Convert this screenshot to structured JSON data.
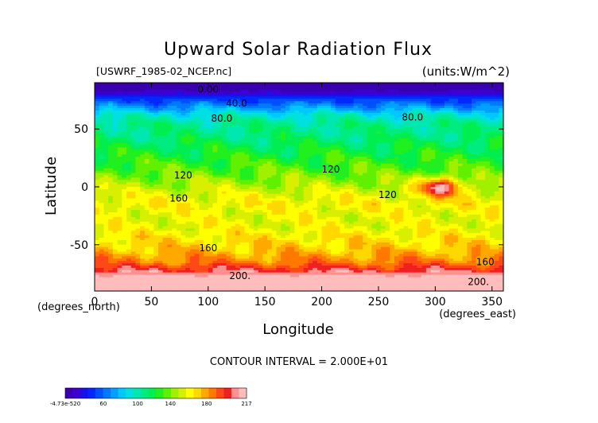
{
  "chart_data": {
    "type": "heatmap",
    "title": "Upward Solar Radiation Flux",
    "file_label": "[USWRF_1985-02_NCEP.nc]",
    "units_label": "(units:W/m^2)",
    "xlabel": "Longitude",
    "ylabel": "Latitude",
    "x_unit_label": "(degrees_east)",
    "y_unit_label": "(degrees_north)",
    "xlim": [
      0,
      360
    ],
    "ylim": [
      -90,
      90
    ],
    "x_ticks": [
      0,
      50,
      100,
      150,
      200,
      250,
      300,
      350
    ],
    "y_ticks": [
      -50,
      0,
      50
    ],
    "contour_interval_text": "CONTOUR INTERVAL = 2.000E+01",
    "contour_labels": [
      {
        "text": "0.00",
        "lon": 100,
        "lat": 84
      },
      {
        "text": "40.0",
        "lon": 125,
        "lat": 72
      },
      {
        "text": "80.0",
        "lon": 112,
        "lat": 59
      },
      {
        "text": "80.0",
        "lon": 280,
        "lat": 60
      },
      {
        "text": "120",
        "lon": 208,
        "lat": 15
      },
      {
        "text": "120",
        "lon": 78,
        "lat": 10
      },
      {
        "text": "120",
        "lon": 258,
        "lat": -7
      },
      {
        "text": "160",
        "lon": 74,
        "lat": -10
      },
      {
        "text": "160",
        "lon": 100,
        "lat": -53
      },
      {
        "text": "160",
        "lon": 344,
        "lat": -65
      },
      {
        "text": "200.",
        "lon": 128,
        "lat": -77
      },
      {
        "text": "200.",
        "lon": 338,
        "lat": -82
      }
    ],
    "colorbar": {
      "tick_labels": [
        "-4.73e-520",
        "60",
        "100",
        "140",
        "180",
        "217"
      ],
      "colors": [
        "#3a00b0",
        "#3c00d2",
        "#1a10e8",
        "#0028ff",
        "#0050ff",
        "#0078ff",
        "#00a0ff",
        "#00c8ff",
        "#00e0e0",
        "#00e8b0",
        "#00ec80",
        "#00ee50",
        "#20f020",
        "#60f000",
        "#a0f000",
        "#d8f000",
        "#ffff00",
        "#ffd800",
        "#ffa800",
        "#ff7800",
        "#ff4818",
        "#f02020",
        "#ff9090",
        "#ffbcbc"
      ]
    },
    "zonal_profile": [
      {
        "lat": 90,
        "value": 0
      },
      {
        "lat": 84,
        "value": 5
      },
      {
        "lat": 80,
        "value": 20
      },
      {
        "lat": 74,
        "value": 40
      },
      {
        "lat": 68,
        "value": 60
      },
      {
        "lat": 62,
        "value": 80
      },
      {
        "lat": 55,
        "value": 92
      },
      {
        "lat": 45,
        "value": 96
      },
      {
        "lat": 35,
        "value": 104
      },
      {
        "lat": 25,
        "value": 112
      },
      {
        "lat": 15,
        "value": 120
      },
      {
        "lat": 5,
        "value": 130
      },
      {
        "lat": -5,
        "value": 142
      },
      {
        "lat": -15,
        "value": 150
      },
      {
        "lat": -25,
        "value": 145
      },
      {
        "lat": -35,
        "value": 146
      },
      {
        "lat": -45,
        "value": 154
      },
      {
        "lat": -55,
        "value": 162
      },
      {
        "lat": -65,
        "value": 176
      },
      {
        "lat": -72,
        "value": 196
      },
      {
        "lat": -80,
        "value": 217
      },
      {
        "lat": -90,
        "value": 217
      }
    ]
  }
}
